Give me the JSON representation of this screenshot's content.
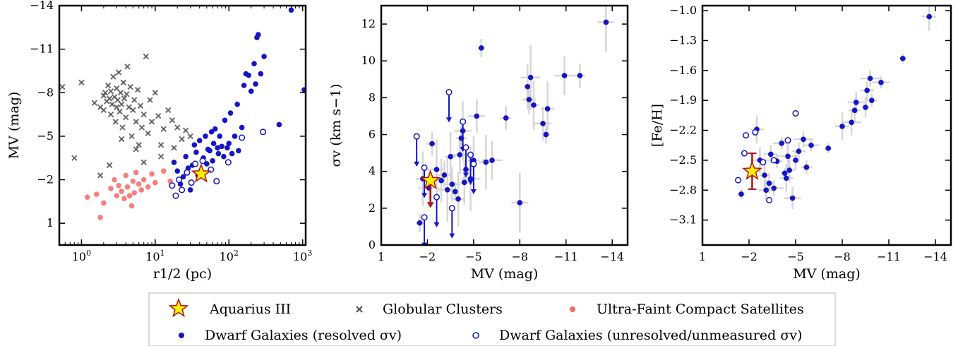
{
  "colors": {
    "dwarf": "#1515c4",
    "globular": "#555555",
    "ufcs": "#f26a6a",
    "star_fill": "#ffee00",
    "star_edge": "#b3121a",
    "err": "#d6d6d6"
  },
  "legend": {
    "aquarius": "Aquarius III",
    "globular": "Globular Clusters",
    "ufcs": "Ultra-Faint Compact Satellites",
    "dwarf_resolved": "Dwarf Galaxies (resolved σv)",
    "dwarf_unresolved": "Dwarf Galaxies (unresolved/unmeasured σv)"
  },
  "chart_data": [
    {
      "type": "scatter",
      "xlabel": "r1/2 (pc)",
      "ylabel": "MV (mag)",
      "xscale": "log",
      "xlim": [
        0.5,
        1100
      ],
      "ylim": [
        2.5,
        -14
      ],
      "xticks": [
        "100",
        "101",
        "102",
        "103"
      ],
      "yticks": [
        "−14",
        "−11",
        "−8",
        "−5",
        "−2",
        "1"
      ],
      "series": [
        {
          "name": "Globular Clusters",
          "marker": "x",
          "points": [
            [
              0.55,
              -8.4
            ],
            [
              1.0,
              -8.7
            ],
            [
              1.5,
              -7.3
            ],
            [
              1.8,
              -7.0
            ],
            [
              2.0,
              -7.8
            ],
            [
              2.0,
              -6.8
            ],
            [
              2.1,
              -8.0
            ],
            [
              2.2,
              -7.4
            ],
            [
              2.3,
              -8.5
            ],
            [
              2.4,
              -7.6
            ],
            [
              2.5,
              -6.5
            ],
            [
              2.5,
              -8.1
            ],
            [
              2.6,
              -7.2
            ],
            [
              2.7,
              -9.1
            ],
            [
              2.8,
              -7.7
            ],
            [
              2.9,
              -6.0
            ],
            [
              3.0,
              -8.3
            ],
            [
              3.0,
              -7.0
            ],
            [
              3.1,
              -7.5
            ],
            [
              3.2,
              -9.4
            ],
            [
              3.3,
              -6.7
            ],
            [
              3.4,
              -8.0
            ],
            [
              3.5,
              -7.2
            ],
            [
              3.6,
              -5.6
            ],
            [
              3.7,
              -8.7
            ],
            [
              3.8,
              -7.6
            ],
            [
              4.0,
              -6.3
            ],
            [
              4.1,
              -7.9
            ],
            [
              4.2,
              -9.8
            ],
            [
              4.4,
              -7.0
            ],
            [
              4.6,
              -8.4
            ],
            [
              4.8,
              -5.0
            ],
            [
              5.0,
              -6.8
            ],
            [
              5.2,
              -7.5
            ],
            [
              5.5,
              -6.0
            ],
            [
              5.8,
              -8.2
            ],
            [
              6.0,
              -4.4
            ],
            [
              6.3,
              -7.1
            ],
            [
              6.6,
              -5.6
            ],
            [
              7.0,
              -6.5
            ],
            [
              7.5,
              -10.5
            ],
            [
              8.0,
              -5.2
            ],
            [
              8.5,
              -7.5
            ],
            [
              9.0,
              -6.0
            ],
            [
              10.0,
              -8.0
            ],
            [
              11.0,
              -6.4
            ],
            [
              12.0,
              -4.4
            ],
            [
              13.0,
              -5.5
            ],
            [
              15.0,
              -6.8
            ],
            [
              17.0,
              -6.1
            ],
            [
              18.0,
              -4.2
            ],
            [
              20.0,
              -5.6
            ],
            [
              23.0,
              -4.8
            ],
            [
              26.0,
              -5.4
            ],
            [
              30.0,
              -5.0
            ],
            [
              0.8,
              -3.5
            ],
            [
              1.8,
              -2.3
            ],
            [
              2.4,
              -3.0
            ],
            [
              3.5,
              -4.8
            ],
            [
              5.5,
              -4.1
            ],
            [
              7.0,
              -3.2
            ],
            [
              12.0,
              -3.6
            ]
          ]
        },
        {
          "name": "Ultra-Faint Compact Satellites",
          "marker": "o",
          "points": [
            [
              1.2,
              -0.8
            ],
            [
              1.6,
              -1.0
            ],
            [
              1.8,
              0.6
            ],
            [
              2.0,
              -0.4
            ],
            [
              2.5,
              -1.4
            ],
            [
              2.8,
              -2.0
            ],
            [
              3.0,
              -0.9
            ],
            [
              3.2,
              -1.6
            ],
            [
              3.5,
              -1.2
            ],
            [
              3.8,
              -0.7
            ],
            [
              4.0,
              -2.3
            ],
            [
              4.2,
              -1.5
            ],
            [
              4.5,
              -0.9
            ],
            [
              5.0,
              -1.9
            ],
            [
              5.2,
              -1.1
            ],
            [
              5.5,
              -2.5
            ],
            [
              6.0,
              -1.7
            ],
            [
              6.5,
              -1.3
            ],
            [
              7.0,
              -2.0
            ],
            [
              8.0,
              -1.5
            ],
            [
              9.0,
              -2.4
            ],
            [
              10.0,
              -1.8
            ],
            [
              13.0,
              -2.6
            ],
            [
              16.0,
              -1.9
            ],
            [
              4.8,
              -0.2
            ]
          ]
        },
        {
          "name": "Dwarf Galaxies (resolved σv)",
          "marker": "o",
          "points": [
            [
              18,
              -3.2
            ],
            [
              20,
              -2.6
            ],
            [
              22,
              -1.7
            ],
            [
              24,
              -2.2
            ],
            [
              26,
              -3.6
            ],
            [
              28,
              -2.8
            ],
            [
              30,
              -1.3
            ],
            [
              32,
              -3.0
            ],
            [
              34,
              -4.4
            ],
            [
              36,
              -3.9
            ],
            [
              38,
              -2.3
            ],
            [
              40,
              -4.7
            ],
            [
              42,
              -2.6
            ],
            [
              45,
              -3.5
            ],
            [
              48,
              -5.0
            ],
            [
              50,
              -3.1
            ],
            [
              52,
              -4.1
            ],
            [
              55,
              -4.0
            ],
            [
              58,
              -5.3
            ],
            [
              60,
              -3.3
            ],
            [
              62,
              -4.5
            ],
            [
              65,
              -5.5
            ],
            [
              70,
              -4.2
            ],
            [
              72,
              -3.8
            ],
            [
              75,
              -5.0
            ],
            [
              80,
              -4.3
            ],
            [
              85,
              -3.6
            ],
            [
              88,
              -6.1
            ],
            [
              95,
              -4.2
            ],
            [
              100,
              -4.5
            ],
            [
              105,
              -6.6
            ],
            [
              110,
              -3.8
            ],
            [
              120,
              -5.0
            ],
            [
              130,
              -7.2
            ],
            [
              135,
              -4.0
            ],
            [
              150,
              -5.6
            ],
            [
              160,
              -8.5
            ],
            [
              170,
              -9.3
            ],
            [
              185,
              -9.2
            ],
            [
              200,
              -8.1
            ],
            [
              220,
              -10.0
            ],
            [
              230,
              -8.6
            ],
            [
              250,
              -12.0
            ],
            [
              240,
              -11.8
            ],
            [
              270,
              -9.3
            ],
            [
              300,
              -10.5
            ],
            [
              480,
              -5.8
            ],
            [
              700,
              -13.7
            ],
            [
              1050,
              -8.2
            ]
          ]
        },
        {
          "name": "Dwarf Galaxies (unresolved/unmeasured σv)",
          "marker": "open",
          "points": [
            [
              17,
              -1.6
            ],
            [
              19,
              -0.9
            ],
            [
              21,
              -2.0
            ],
            [
              23,
              -1.3
            ],
            [
              27,
              -2.5
            ],
            [
              31,
              -1.8
            ],
            [
              35,
              -3.1
            ],
            [
              44,
              -3.3
            ],
            [
              57,
              -2.7
            ],
            [
              68,
              -1.9
            ],
            [
              98,
              -3.2
            ],
            [
              150,
              -4.9
            ],
            [
              290,
              -5.3
            ]
          ]
        }
      ],
      "aquarius": {
        "x": 42,
        "y": -2.4
      }
    },
    {
      "type": "scatter",
      "xlabel": "MV (mag)",
      "ylabel": "σv (km s−1)",
      "xlim": [
        1,
        -15
      ],
      "ylim": [
        0,
        13
      ],
      "xticks": [
        "1",
        "−2",
        "−5",
        "−8",
        "−11",
        "−14"
      ],
      "yticks": [
        "0",
        "2",
        "4",
        "6",
        "8",
        "10",
        "12"
      ],
      "series": [
        {
          "name": "Dwarf Galaxies (resolved σv)",
          "marker": "o",
          "points": [
            [
              -1.5,
              1.2
            ],
            [
              -1.7,
              3.6
            ],
            [
              -2.1,
              3.1
            ],
            [
              -2.3,
              5.5
            ],
            [
              -2.6,
              4.1
            ],
            [
              -2.9,
              3.5
            ],
            [
              -3.1,
              3.8
            ],
            [
              -3.3,
              3.0
            ],
            [
              -3.5,
              4.8
            ],
            [
              -3.6,
              3.3
            ],
            [
              -3.8,
              2.9
            ],
            [
              -4.0,
              2.5
            ],
            [
              -4.1,
              4.9
            ],
            [
              -4.2,
              5.8
            ],
            [
              -4.3,
              6.2
            ],
            [
              -4.4,
              3.4
            ],
            [
              -4.5,
              4.1
            ],
            [
              -4.8,
              3.6
            ],
            [
              -5.0,
              4.6
            ],
            [
              -5.2,
              7.0
            ],
            [
              -5.5,
              10.7
            ],
            [
              -5.8,
              4.5
            ],
            [
              -6.2,
              4.6
            ],
            [
              -7.1,
              6.9
            ],
            [
              -8.0,
              2.3
            ],
            [
              -8.5,
              8.6
            ],
            [
              -8.6,
              7.9
            ],
            [
              -8.7,
              9.1
            ],
            [
              -8.9,
              7.6
            ],
            [
              -9.5,
              6.6
            ],
            [
              -9.7,
              6.0
            ],
            [
              -9.8,
              7.4
            ],
            [
              -10.9,
              9.2
            ],
            [
              -11.9,
              9.2
            ],
            [
              -13.6,
              12.1
            ]
          ]
        },
        {
          "name": "Dwarf Galaxies (unresolved/unmeasured σv)",
          "marker": "open",
          "points": [
            [
              -1.3,
              5.9
            ],
            [
              -1.8,
              4.2
            ],
            [
              -1.8,
              1.5
            ],
            [
              -2.6,
              2.6
            ],
            [
              -3.4,
              8.3
            ],
            [
              -3.6,
              2.0
            ],
            [
              -4.3,
              6.7
            ],
            [
              -4.5,
              5.3
            ],
            [
              -4.8,
              4.9
            ],
            [
              -5.0,
              4.4
            ]
          ]
        }
      ],
      "aquarius": {
        "x": -2.2,
        "y": 3.5,
        "err_low": 1.4,
        "err_high": 0.5
      }
    },
    {
      "type": "scatter",
      "xlabel": "MV (mag)",
      "ylabel": "[Fe/H]",
      "xlim": [
        1,
        -15
      ],
      "ylim": [
        -3.35,
        -0.95
      ],
      "xticks": [
        "1",
        "−2",
        "−5",
        "−8",
        "−11",
        "−14"
      ],
      "yticks": [
        "−1.0",
        "−1.3",
        "−1.6",
        "−1.9",
        "−2.2",
        "−2.5",
        "−2.8",
        "−3.1"
      ],
      "series": [
        {
          "name": "Dwarf Galaxies (resolved σv)",
          "marker": "o",
          "points": [
            [
              -1.5,
              -2.84
            ],
            [
              -2.5,
              -2.19
            ],
            [
              -2.7,
              -2.5
            ],
            [
              -3.0,
              -2.65
            ],
            [
              -3.1,
              -2.8
            ],
            [
              -3.3,
              -2.73
            ],
            [
              -3.4,
              -2.44
            ],
            [
              -3.6,
              -2.78
            ],
            [
              -3.8,
              -2.51
            ],
            [
              -4.1,
              -2.33
            ],
            [
              -4.3,
              -2.63
            ],
            [
              -4.4,
              -2.68
            ],
            [
              -4.5,
              -2.46
            ],
            [
              -4.6,
              -2.6
            ],
            [
              -4.8,
              -2.88
            ],
            [
              -5.0,
              -2.5
            ],
            [
              -5.2,
              -2.41
            ],
            [
              -5.5,
              -2.29
            ],
            [
              -5.7,
              -2.57
            ],
            [
              -6.0,
              -2.35
            ],
            [
              -7.1,
              -2.38
            ],
            [
              -8.0,
              -2.16
            ],
            [
              -8.6,
              -2.12
            ],
            [
              -8.8,
              -2.0
            ],
            [
              -8.9,
              -1.92
            ],
            [
              -9.5,
              -1.97
            ],
            [
              -9.6,
              -1.8
            ],
            [
              -9.8,
              -1.68
            ],
            [
              -9.9,
              -1.9
            ],
            [
              -10.5,
              -1.72
            ],
            [
              -11.9,
              -1.48
            ],
            [
              -13.6,
              -1.06
            ]
          ]
        },
        {
          "name": "Dwarf Galaxies (unresolved/unmeasured σv)",
          "marker": "open",
          "points": [
            [
              -1.3,
              -2.7
            ],
            [
              -1.7,
              -2.43
            ],
            [
              -1.8,
              -2.25
            ],
            [
              -2.4,
              -2.22
            ],
            [
              -2.9,
              -2.52
            ],
            [
              -3.3,
              -2.9
            ],
            [
              -3.6,
              -2.5
            ],
            [
              -4.5,
              -2.3
            ],
            [
              -5.0,
              -2.03
            ]
          ]
        }
      ],
      "aquarius": {
        "x": -2.2,
        "y": -2.61,
        "err_low": 0.18,
        "err_high": 0.18
      }
    }
  ]
}
